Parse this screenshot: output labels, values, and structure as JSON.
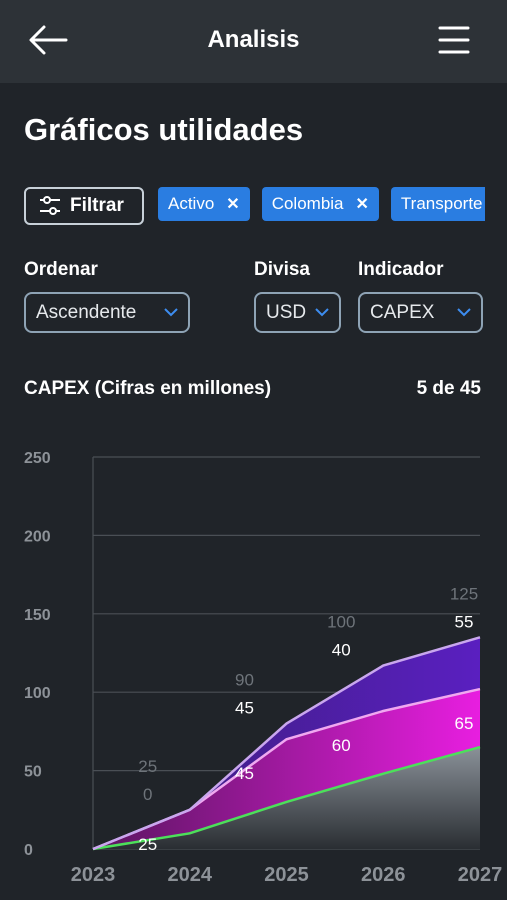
{
  "header": {
    "title": "Analisis",
    "back_icon": "arrow-left-icon",
    "menu_icon": "hamburger-menu-icon"
  },
  "page_title": "Gráficos utilidades",
  "filter_button": {
    "label": "Filtrar",
    "icon": "sliders-icon"
  },
  "chips": [
    {
      "label": "Activo"
    },
    {
      "label": "Colombia"
    },
    {
      "label": "Transporte"
    }
  ],
  "selects": {
    "order": {
      "label": "Ordenar",
      "value": "Ascendente"
    },
    "currency": {
      "label": "Divisa",
      "value": "USD"
    },
    "indicator": {
      "label": "Indicador",
      "value": "CAPEX"
    }
  },
  "chart_header": {
    "title": "CAPEX (Cifras en millones)",
    "pagination": "5 de 45"
  },
  "chart_data": {
    "type": "area",
    "ylim": [
      0,
      250
    ],
    "yticks": [
      "0",
      "50",
      "100",
      "150",
      "200",
      "250"
    ],
    "xticks": [
      "2023",
      "2024",
      "2025",
      "2026",
      "2027"
    ],
    "x": [
      2023,
      2024,
      2025,
      2026,
      2027
    ],
    "totals": [
      null,
      25,
      90,
      100,
      125
    ],
    "stacked_labels": {
      "top": [
        null,
        "0",
        "45",
        "40",
        "55"
      ],
      "middle": [
        null,
        "25",
        "45",
        "60",
        "65"
      ]
    },
    "series": [
      {
        "values": [
          0,
          10,
          30,
          48,
          65
        ],
        "color": "#44dd55"
      },
      {
        "values": [
          0,
          25,
          70,
          88,
          102
        ],
        "color": "#e52ed9"
      },
      {
        "values": [
          0,
          25,
          80,
          117,
          135
        ],
        "color": "#6a2bc8"
      }
    ],
    "grid": true
  }
}
